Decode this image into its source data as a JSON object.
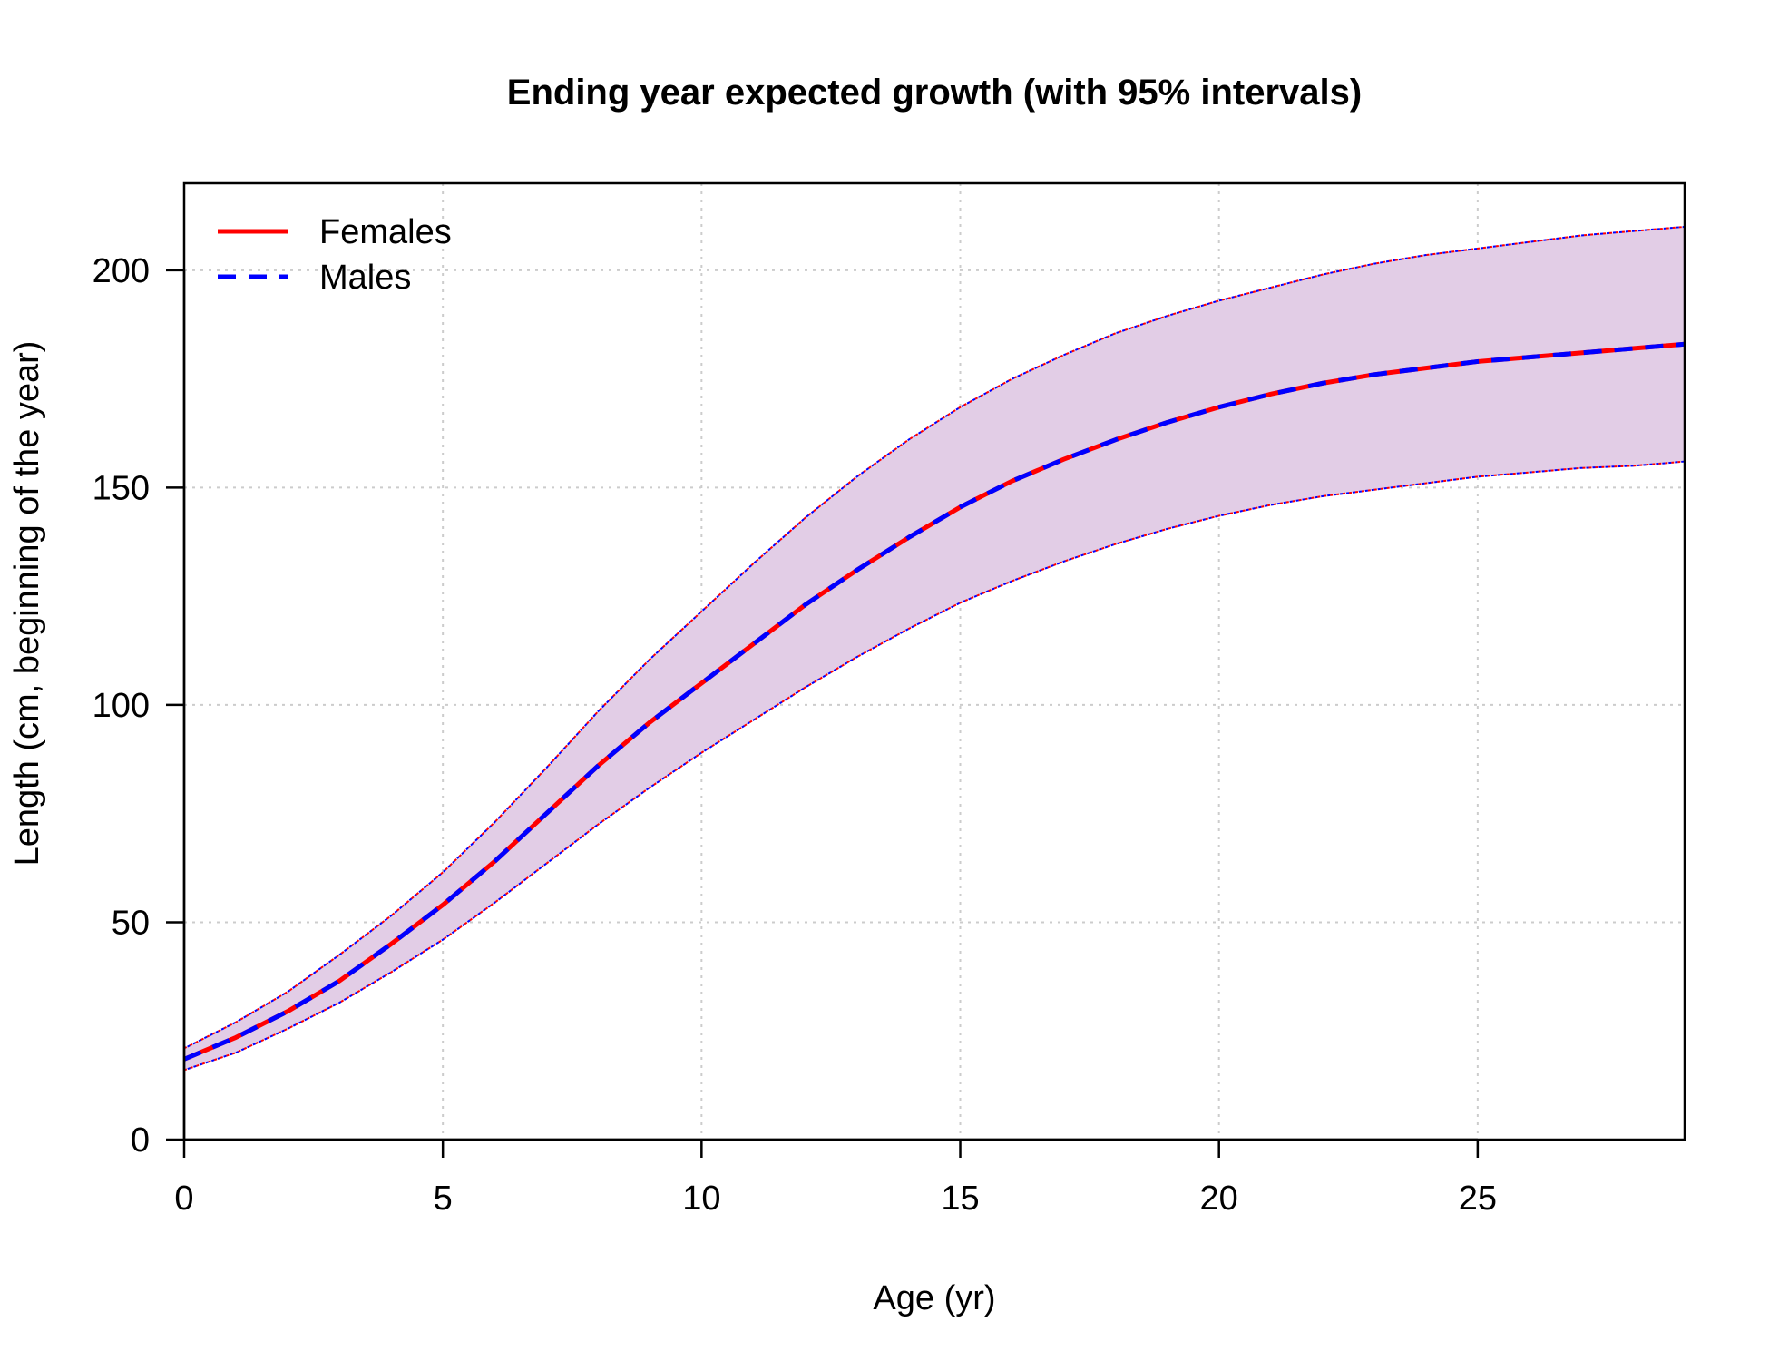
{
  "chart_data": {
    "type": "line",
    "title": "Ending year expected growth (with 95% intervals)",
    "xlabel": "Age (yr)",
    "ylabel": "Length (cm, beginning of the year)",
    "xlim": [
      0,
      29
    ],
    "ylim": [
      0,
      220
    ],
    "x_ticks": [
      0,
      5,
      10,
      15,
      20,
      25
    ],
    "y_ticks": [
      0,
      50,
      100,
      150,
      200
    ],
    "grid": true,
    "legend_position": "top-left",
    "x": [
      0,
      1,
      2,
      3,
      4,
      5,
      6,
      7,
      8,
      9,
      10,
      11,
      12,
      13,
      14,
      15,
      16,
      17,
      18,
      19,
      20,
      21,
      22,
      23,
      24,
      25,
      26,
      27,
      28,
      29
    ],
    "series": [
      {
        "name": "Females",
        "color": "#ff0000",
        "dash": "solid",
        "values": [
          18.5,
          23.5,
          29.5,
          36.5,
          45,
          54,
          64,
          75,
          86,
          96,
          105,
          114,
          123,
          131,
          138.5,
          145.5,
          151.5,
          156.5,
          161,
          165,
          168.5,
          171.5,
          174,
          176,
          177.5,
          179,
          180,
          181,
          182,
          183
        ],
        "lower": [
          16,
          20,
          25.5,
          31.5,
          38.5,
          46,
          54.5,
          63.5,
          72.5,
          81,
          89,
          96.5,
          104,
          111,
          117.5,
          123.5,
          128.5,
          133,
          137,
          140.5,
          143.5,
          146,
          148,
          149.5,
          151,
          152.5,
          153.5,
          154.5,
          155,
          156
        ],
        "upper": [
          21,
          27,
          34,
          42.5,
          51.5,
          61.5,
          73,
          85.5,
          98.5,
          110.5,
          121.5,
          132.5,
          143,
          152.5,
          161,
          168.5,
          175,
          180.5,
          185.5,
          189.5,
          193,
          196,
          199,
          201.5,
          203.5,
          205,
          206.5,
          208,
          209,
          210
        ]
      },
      {
        "name": "Males",
        "color": "#0000ff",
        "dash": "dashed",
        "values": [
          18.5,
          23.5,
          29.5,
          36.5,
          45,
          54,
          64,
          75,
          86,
          96,
          105,
          114,
          123,
          131,
          138.5,
          145.5,
          151.5,
          156.5,
          161,
          165,
          168.5,
          171.5,
          174,
          176,
          177.5,
          179,
          180,
          181,
          182,
          183
        ],
        "lower": [
          16,
          20,
          25.5,
          31.5,
          38.5,
          46,
          54.5,
          63.5,
          72.5,
          81,
          89,
          96.5,
          104,
          111,
          117.5,
          123.5,
          128.5,
          133,
          137,
          140.5,
          143.5,
          146,
          148,
          149.5,
          151,
          152.5,
          153.5,
          154.5,
          155,
          156
        ],
        "upper": [
          21,
          27,
          34,
          42.5,
          51.5,
          61.5,
          73,
          85.5,
          98.5,
          110.5,
          121.5,
          132.5,
          143,
          152.5,
          161,
          168.5,
          175,
          180.5,
          185.5,
          189.5,
          193,
          196,
          199,
          201.5,
          203.5,
          205,
          206.5,
          208,
          209,
          210
        ]
      }
    ],
    "band_color": "#e2cde6"
  }
}
